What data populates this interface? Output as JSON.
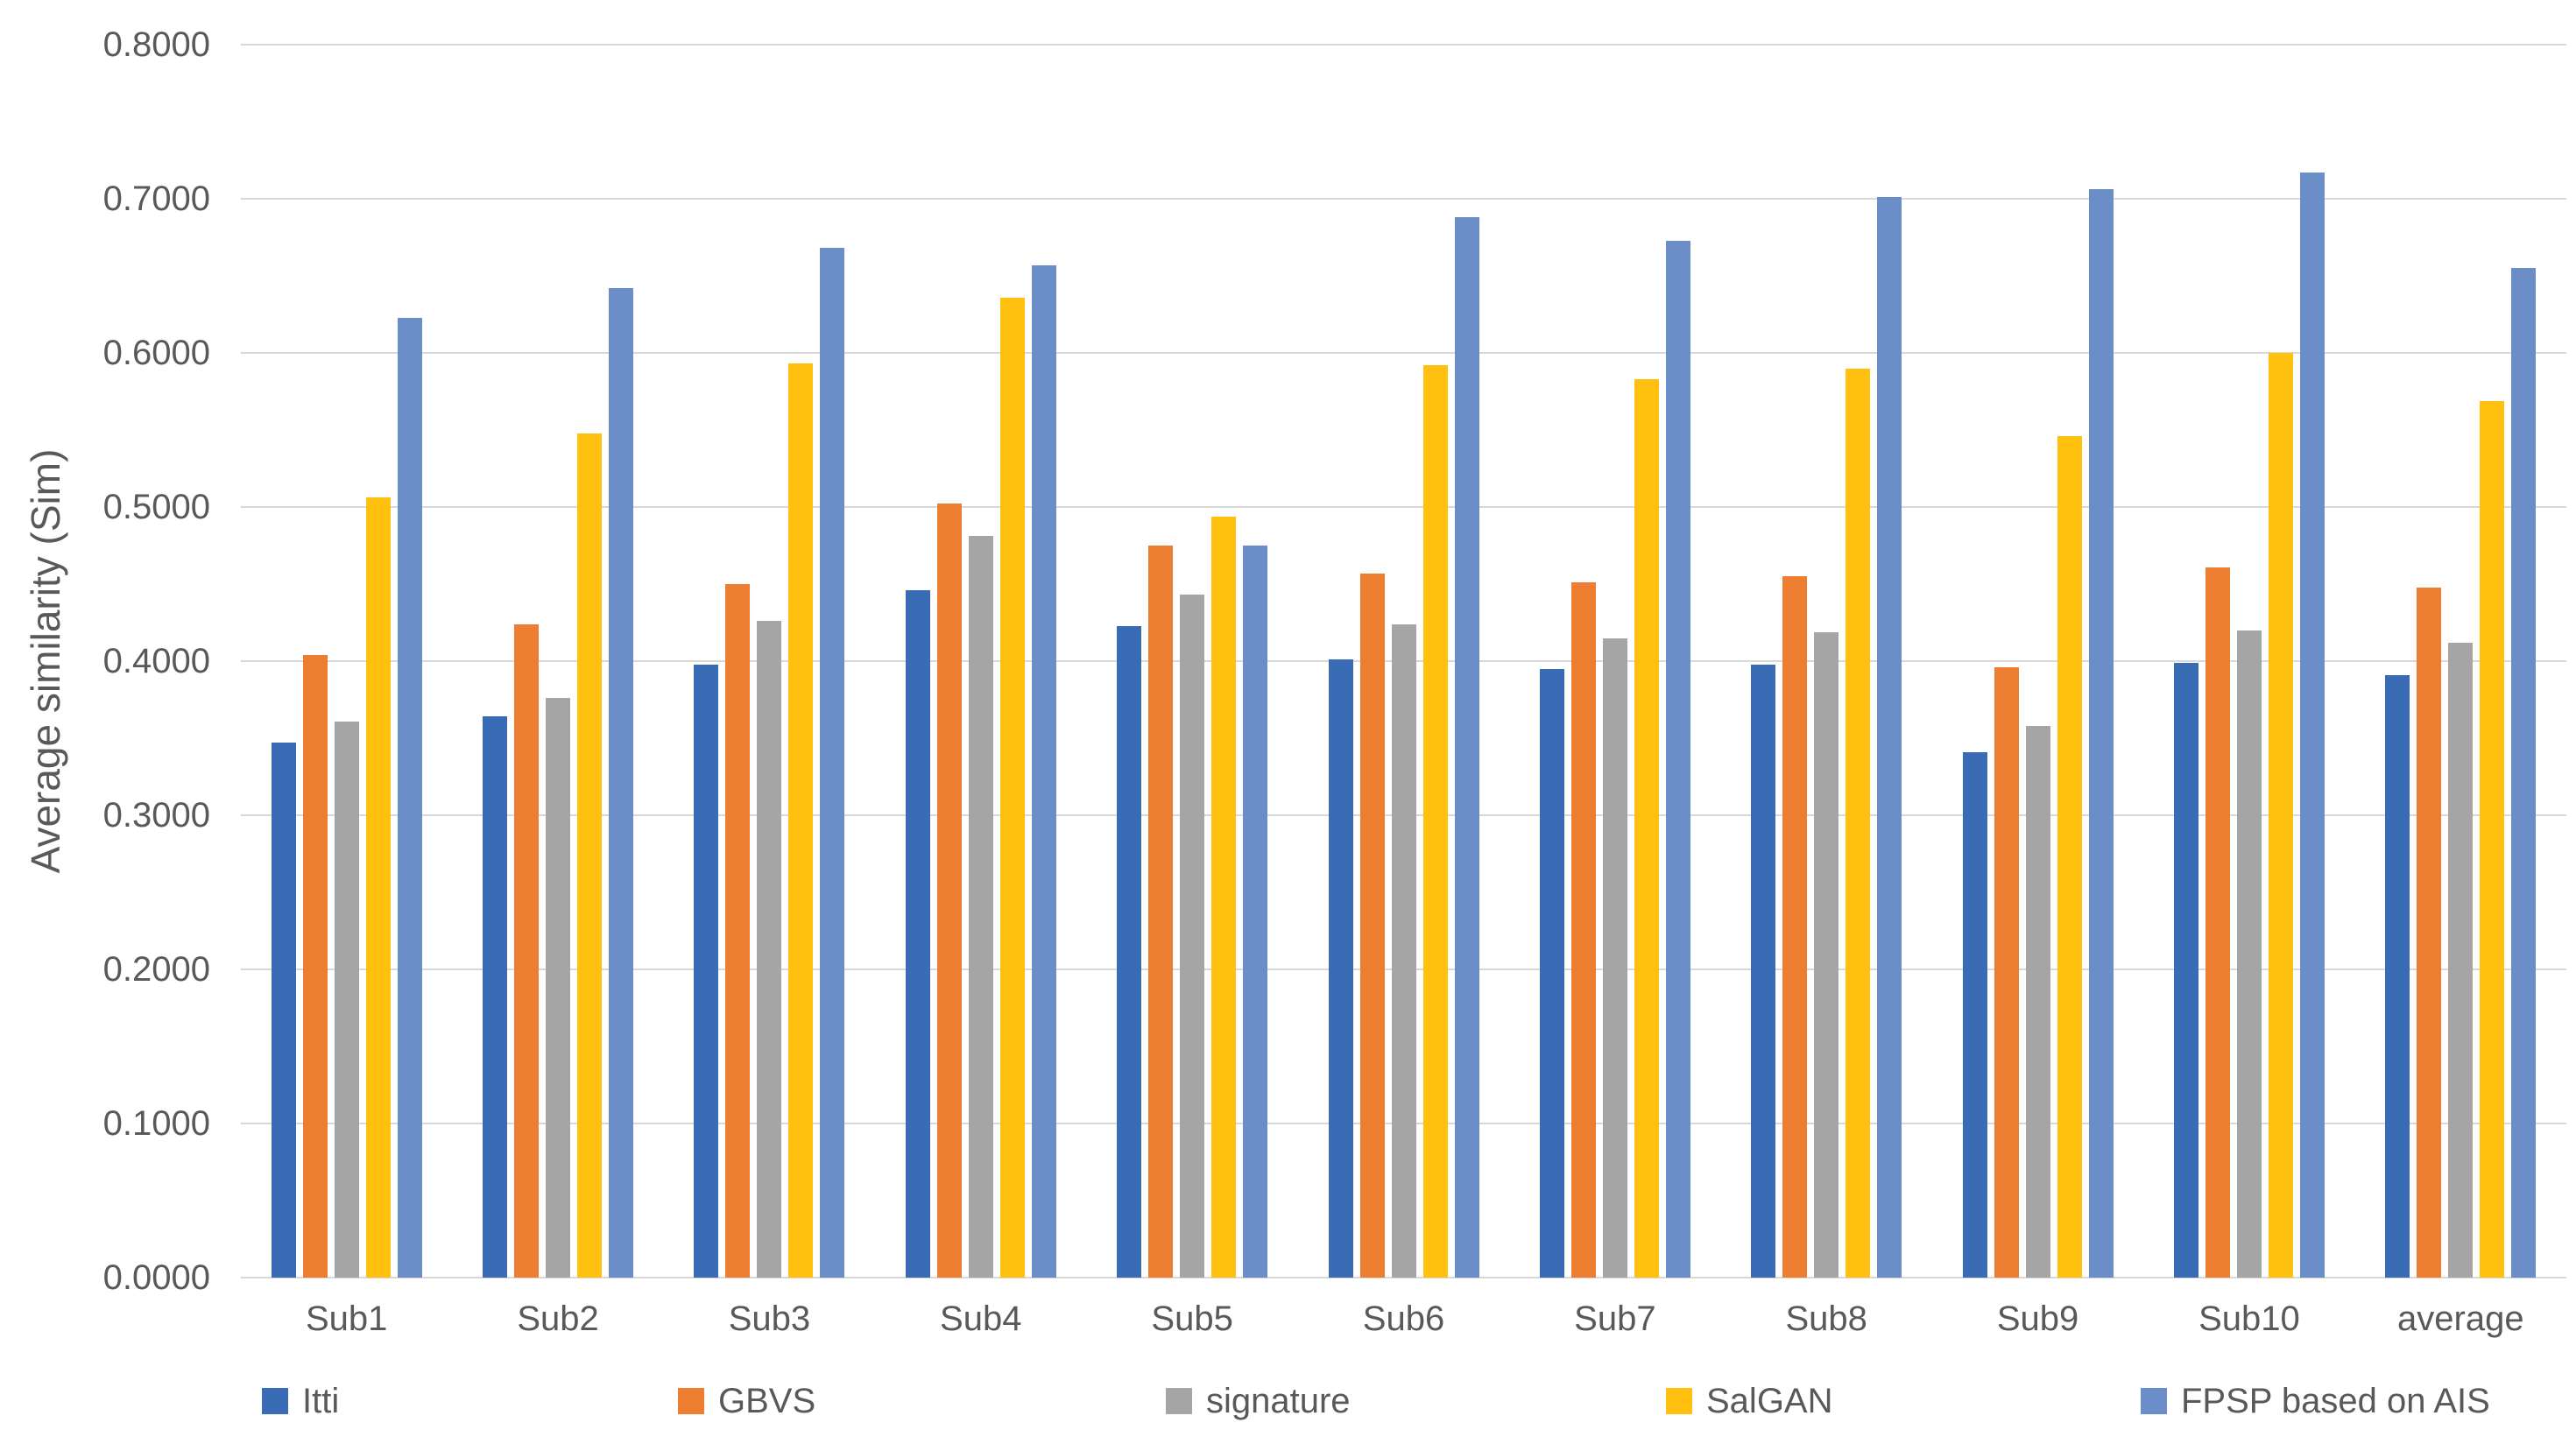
{
  "chart_data": {
    "type": "bar",
    "ylabel": "Average similarity (Sim)",
    "ylim": [
      0.0,
      0.8
    ],
    "y_ticks": [
      "0.0000",
      "0.1000",
      "0.2000",
      "0.3000",
      "0.4000",
      "0.5000",
      "0.6000",
      "0.7000",
      "0.8000"
    ],
    "grid": true,
    "legend_position": "bottom",
    "categories": [
      "Sub1",
      "Sub2",
      "Sub3",
      "Sub4",
      "Sub5",
      "Sub6",
      "Sub7",
      "Sub8",
      "Sub9",
      "Sub10",
      "average"
    ],
    "series": [
      {
        "name": "Itti",
        "color": "#3A6BB5",
        "values": [
          0.347,
          0.364,
          0.398,
          0.446,
          0.423,
          0.401,
          0.395,
          0.398,
          0.341,
          0.399,
          0.391
        ]
      },
      {
        "name": "GBVS",
        "color": "#ED7D31",
        "values": [
          0.404,
          0.424,
          0.45,
          0.502,
          0.475,
          0.457,
          0.451,
          0.455,
          0.396,
          0.461,
          0.448
        ]
      },
      {
        "name": "signature",
        "color": "#A5A5A5",
        "values": [
          0.361,
          0.376,
          0.426,
          0.481,
          0.443,
          0.424,
          0.415,
          0.419,
          0.358,
          0.42,
          0.412
        ]
      },
      {
        "name": "SalGAN",
        "color": "#FFC010",
        "values": [
          0.506,
          0.548,
          0.593,
          0.636,
          0.494,
          0.592,
          0.583,
          0.59,
          0.546,
          0.6,
          0.569
        ]
      },
      {
        "name": "FPSP based on AIS",
        "color": "#6B8EC9",
        "values": [
          0.623,
          0.642,
          0.668,
          0.657,
          0.475,
          0.688,
          0.673,
          0.701,
          0.706,
          0.717,
          0.655
        ]
      }
    ]
  },
  "colors": {
    "gridline": "#D9D9D9",
    "text": "#595959",
    "background": "#FFFFFF"
  }
}
